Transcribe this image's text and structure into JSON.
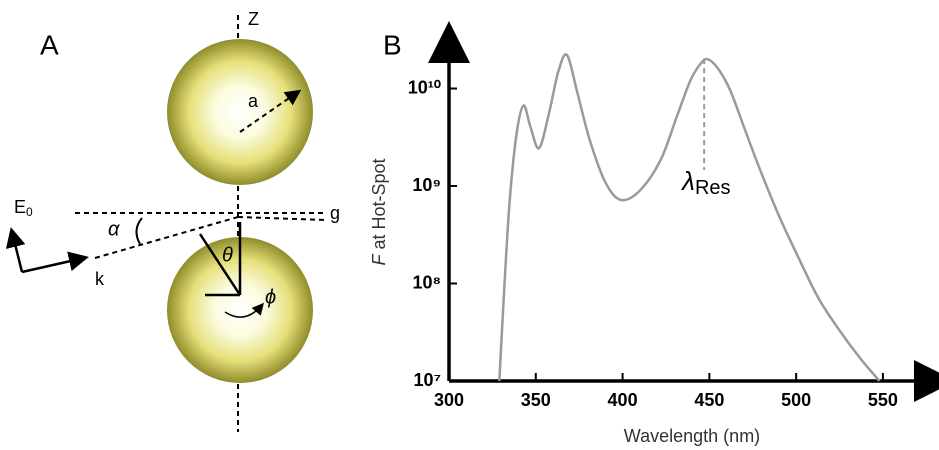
{
  "panel_a": {
    "letter": "A",
    "z_label": "Z",
    "radius_label": "a",
    "field_label": "E",
    "field_subscript": "0",
    "k_label": "k",
    "alpha_label": "α",
    "theta_label": "θ",
    "phi_label": "ϕ",
    "gap_label": "g"
  },
  "chart_data": {
    "type": "line",
    "panel_letter": "B",
    "xlabel": "Wavelength (nm)",
    "ylabel_var": "F",
    "ylabel": "at Hot-Spot",
    "x": [
      329,
      332,
      335,
      339,
      343,
      347,
      352,
      358,
      363,
      368,
      374,
      381,
      390,
      399,
      410,
      422,
      431,
      439,
      445,
      449,
      455,
      462,
      470,
      479,
      490,
      502,
      513,
      525,
      537,
      548
    ],
    "series": [
      {
        "name": "F",
        "color": "#9a9a9a",
        "values": [
          10000000,
          100000000,
          720000000,
          3500000000,
          6700000000,
          4000000000,
          2450000000,
          6000000000,
          15000000000,
          22000000000,
          9000000000,
          3000000000,
          1100000000,
          720000000,
          900000000,
          1860000000,
          5000000000,
          12000000000,
          18000000000,
          20000000000,
          16000000000,
          9600000000,
          4000000000,
          1500000000,
          500000000,
          174000000,
          70000000,
          33000000,
          17000000,
          10000000
        ]
      }
    ],
    "xlim": [
      300,
      580
    ],
    "xticks": [
      300,
      350,
      400,
      450,
      500,
      550
    ],
    "ylim": [
      10000000,
      30000000000
    ],
    "log_y": true,
    "yticks": [
      {
        "value": 10000000,
        "label": "10⁷"
      },
      {
        "value": 100000000,
        "label": "10⁸"
      },
      {
        "value": 1000000000,
        "label": "10⁹"
      },
      {
        "value": 10000000000,
        "label": "10¹⁰"
      }
    ],
    "annotation": {
      "symbol": "λ",
      "subscript": "Res",
      "x": 447,
      "y": 20000000000
    }
  }
}
